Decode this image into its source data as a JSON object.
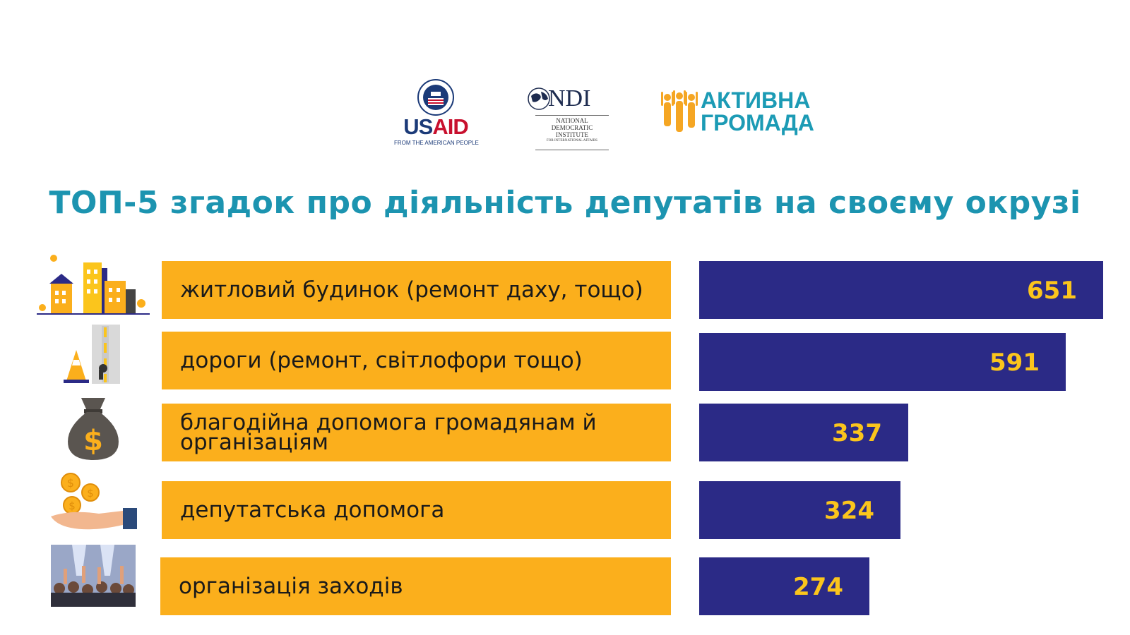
{
  "logos": {
    "usaid": {
      "word_blue": "US",
      "word_red": "AID",
      "tagline": "FROM THE AMERICAN PEOPLE"
    },
    "ndi": {
      "word": "NDI",
      "lines": [
        "NATIONAL",
        "DEMOCRATIC",
        "INSTITUTE",
        "FOR INTERNATIONAL AFFAIRS"
      ]
    },
    "aktyvna": {
      "line1": "АКТИВНА",
      "line2": "ГРОМАДА"
    }
  },
  "colors": {
    "title": "#1c94b0",
    "label_bg": "#fbaf1c",
    "bar": "#2b2a86",
    "value": "#fbc51c"
  },
  "chart_data": {
    "type": "bar",
    "orientation": "horizontal",
    "title": "ТОП-5 згадок про діяльність депутатів на своєму окрузі",
    "categories": [
      "житловий будинок (ремонт даху, тощо)",
      "дороги (ремонт, світлофори тощо)",
      "благодійна допомога громадянам й організаціям",
      "депутатська допомога",
      "організація заходів"
    ],
    "icons": [
      "buildings-icon",
      "road-icon",
      "money-bag-icon",
      "coins-hand-icon",
      "crowd-icon"
    ],
    "values": [
      651,
      591,
      337,
      324,
      274
    ],
    "xlim": [
      0,
      651
    ],
    "grid": false
  }
}
